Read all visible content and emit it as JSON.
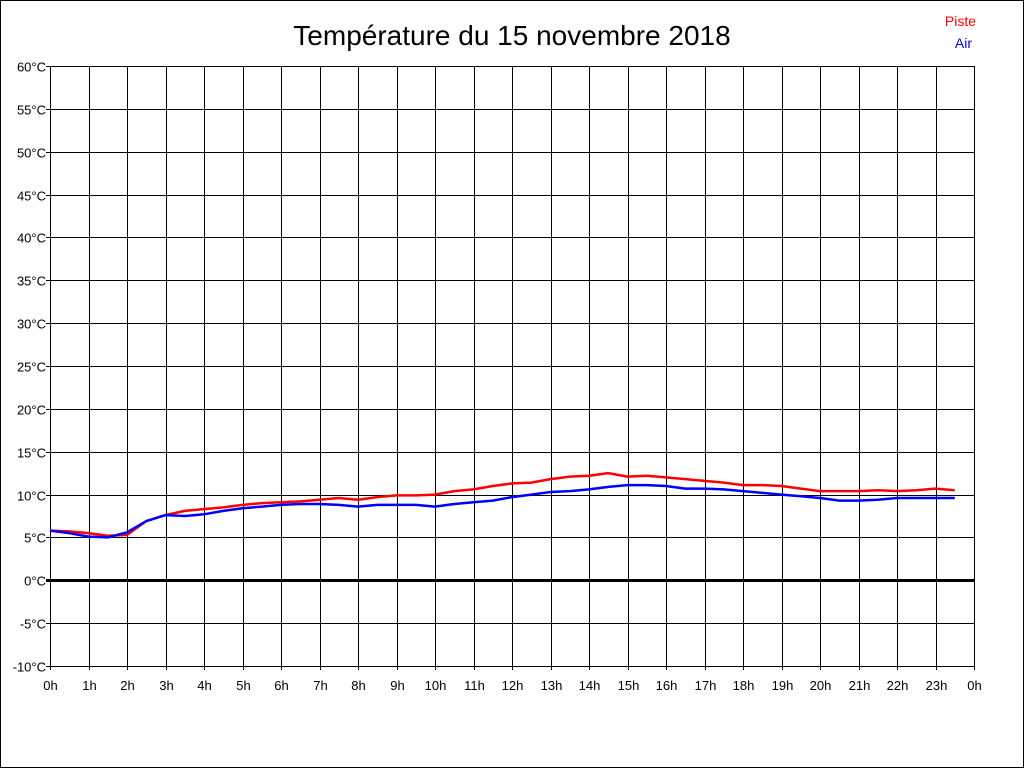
{
  "chart_data": {
    "type": "line",
    "title": "Température du 15 novembre 2018",
    "xlabel": "",
    "ylabel": "",
    "xlim": [
      0,
      24
    ],
    "ylim": [
      -10,
      60
    ],
    "grid": true,
    "legend_position": "top-right",
    "x_tick_labels": [
      "0h",
      "1h",
      "2h",
      "3h",
      "4h",
      "5h",
      "6h",
      "7h",
      "8h",
      "9h",
      "10h",
      "11h",
      "12h",
      "13h",
      "14h",
      "15h",
      "16h",
      "17h",
      "18h",
      "19h",
      "20h",
      "21h",
      "22h",
      "23h",
      "0h"
    ],
    "y_ticks": [
      60,
      55,
      50,
      45,
      40,
      35,
      30,
      25,
      20,
      15,
      10,
      5,
      0,
      -5,
      -10
    ],
    "y_tick_labels": [
      "60°C",
      "55°C",
      "50°C",
      "45°C",
      "40°C",
      "35°C",
      "30°C",
      "25°C",
      "20°C",
      "15°C",
      "10°C",
      "5°C",
      "0°C",
      "-5°C",
      "-10°C"
    ],
    "x": [
      0,
      0.5,
      1,
      1.5,
      2,
      2.5,
      3,
      3.5,
      4,
      4.5,
      5,
      5.5,
      6,
      6.5,
      7,
      7.5,
      8,
      8.5,
      9,
      9.5,
      10,
      10.5,
      11,
      11.5,
      12,
      12.5,
      13,
      13.5,
      14,
      14.5,
      15,
      15.5,
      16,
      16.5,
      17,
      17.5,
      18,
      18.5,
      19,
      19.5,
      20,
      20.5,
      21,
      21.5,
      22,
      22.5,
      23,
      23.5
    ],
    "series": [
      {
        "name": "Piste",
        "color": "#ff0000",
        "values": [
          5.8,
          5.7,
          5.5,
          5.2,
          5.3,
          6.9,
          7.6,
          8.1,
          8.3,
          8.5,
          8.8,
          9.0,
          9.1,
          9.2,
          9.4,
          9.6,
          9.4,
          9.7,
          9.9,
          9.9,
          10.0,
          10.4,
          10.6,
          11.0,
          11.3,
          11.4,
          11.8,
          12.1,
          12.2,
          12.5,
          12.1,
          12.2,
          12.0,
          11.8,
          11.6,
          11.4,
          11.1,
          11.1,
          11.0,
          10.7,
          10.4,
          10.4,
          10.4,
          10.5,
          10.4,
          10.5,
          10.7,
          10.5
        ]
      },
      {
        "name": "Air",
        "color": "#0000ff",
        "values": [
          5.8,
          5.5,
          5.1,
          5.0,
          5.6,
          6.9,
          7.6,
          7.5,
          7.7,
          8.1,
          8.4,
          8.6,
          8.8,
          8.9,
          8.9,
          8.8,
          8.6,
          8.8,
          8.8,
          8.8,
          8.6,
          8.9,
          9.1,
          9.3,
          9.7,
          10.0,
          10.3,
          10.4,
          10.6,
          10.9,
          11.1,
          11.1,
          11.0,
          10.7,
          10.7,
          10.6,
          10.4,
          10.2,
          10.0,
          9.8,
          9.6,
          9.3,
          9.3,
          9.4,
          9.6,
          9.6,
          9.6,
          9.6
        ]
      }
    ]
  }
}
